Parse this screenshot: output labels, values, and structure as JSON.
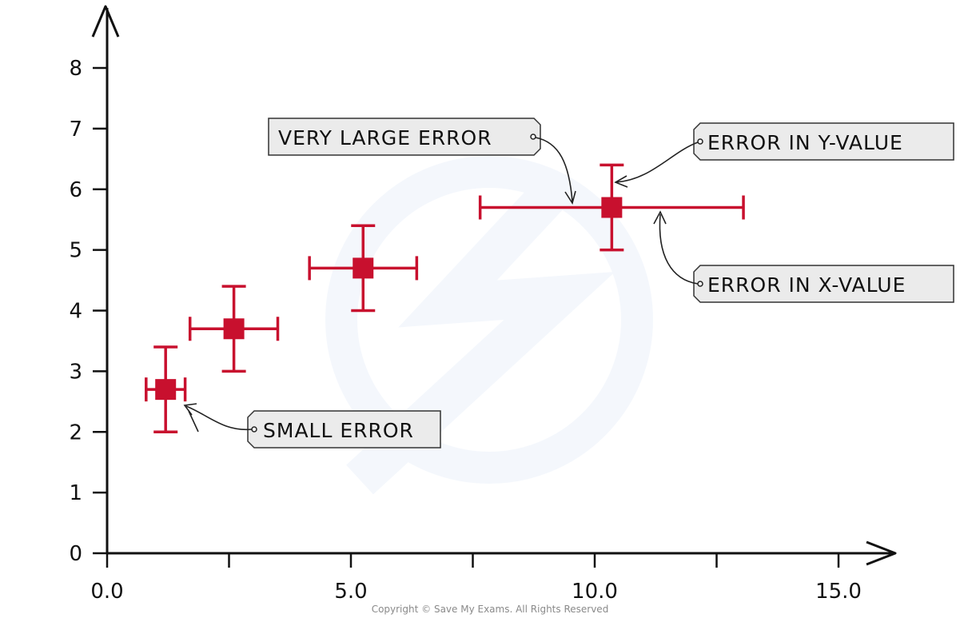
{
  "chart_data": {
    "type": "scatter",
    "title": "",
    "xlabel": "",
    "ylabel": "",
    "xlim": [
      0,
      15.0
    ],
    "ylim": [
      0,
      8
    ],
    "x_ticks": [
      0,
      2.5,
      5.0,
      7.5,
      10.0,
      12.5,
      15.0
    ],
    "x_tick_labels": [
      "0.0",
      "",
      "5.0",
      "",
      "10.0",
      "",
      "15.0"
    ],
    "y_ticks": [
      0,
      1,
      2,
      3,
      4,
      5,
      6,
      7,
      8
    ],
    "y_tick_labels": [
      "0",
      "1",
      "2",
      "3",
      "4",
      "5",
      "6",
      "7",
      "8"
    ],
    "grid": false,
    "series": [
      {
        "color": "#c8102e",
        "points": [
          {
            "x": 1.2,
            "y": 2.7,
            "x_err": 0.4,
            "y_err": 0.7
          },
          {
            "x": 2.6,
            "y": 3.7,
            "x_err": 0.9,
            "y_err": 0.7
          },
          {
            "x": 5.25,
            "y": 4.7,
            "x_err": 1.1,
            "y_err": 0.7
          },
          {
            "x": 10.35,
            "y": 5.7,
            "x_err": 2.7,
            "y_err": 0.7
          }
        ]
      }
    ],
    "annotations": [
      {
        "text": "VERY LARGE ERROR"
      },
      {
        "text": "ERROR IN Y-VALUE"
      },
      {
        "text": "ERROR IN X-VALUE"
      },
      {
        "text": "SMALL ERROR"
      }
    ]
  },
  "footer": {
    "copyright": "Copyright © Save My Exams. All Rights Reserved"
  }
}
